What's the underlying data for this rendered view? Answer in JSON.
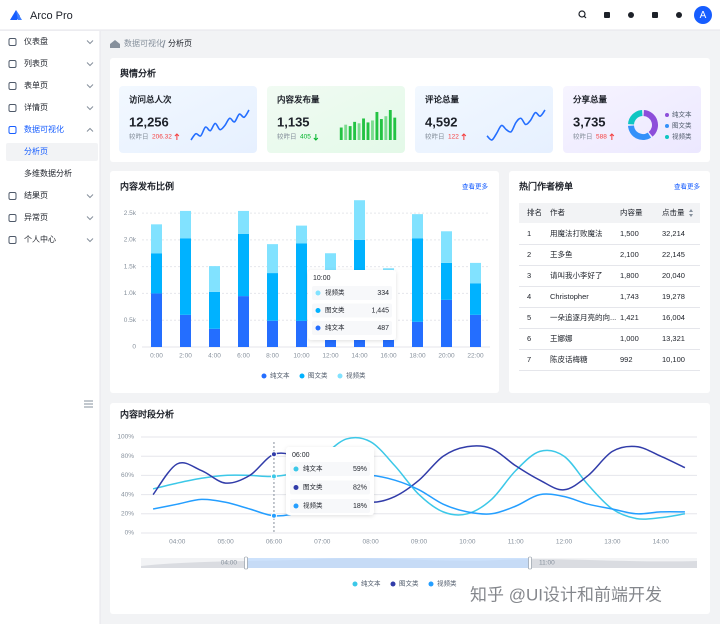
{
  "app": {
    "logo": "Arco Pro",
    "avatar": "A"
  },
  "menu": [
    "仪表盘",
    "列表页",
    "表单页",
    "详情页",
    "数据可视化",
    "结果页",
    "异常页",
    "个人中心"
  ],
  "submenu": [
    "分析页",
    "多维数据分析"
  ],
  "breadcrumb": [
    "数据可视化",
    "分析页"
  ],
  "overview": {
    "title": "舆情分析",
    "cards": [
      {
        "title": "访问总人次",
        "value": "12,256",
        "compare": "较昨日",
        "change": "206.32",
        "direction": "up",
        "chart": "line",
        "color": "#246eff",
        "trend": [
          30,
          42,
          38,
          55,
          48,
          62,
          50,
          58,
          72,
          65,
          80,
          74,
          88
        ]
      },
      {
        "title": "内容发布量",
        "value": "1,135",
        "compare": "较昨日",
        "change": "405",
        "direction": "down",
        "chart": "bar",
        "color": "#23c343",
        "trend": [
          30,
          40,
          35,
          50,
          45,
          62,
          48,
          55,
          85,
          60,
          70,
          92,
          65
        ]
      },
      {
        "title": "评论总量",
        "value": "4,592",
        "compare": "较昨日",
        "change": "122",
        "direction": "up",
        "chart": "line",
        "color": "#246eff",
        "trend": [
          40,
          32,
          45,
          60,
          52,
          48,
          66,
          74,
          62,
          70,
          85,
          78,
          90
        ]
      },
      {
        "title": "分享总量",
        "value": "3,735",
        "compare": "较昨日",
        "change": "588",
        "direction": "up",
        "chart": "pie",
        "slices": [
          {
            "name": "纯文本",
            "color": "#8d4eda",
            "value": 40
          },
          {
            "name": "图文类",
            "color": "#3491fa",
            "value": 35
          },
          {
            "name": "视频类",
            "color": "#0fc6c2",
            "value": 25
          }
        ]
      }
    ]
  },
  "authors": {
    "title": "热门作者榜单",
    "more": "查看更多",
    "columns": [
      "排名",
      "作者",
      "内容量",
      "点击量"
    ],
    "rows": [
      [
        "1",
        "用魔法打败魔法",
        "1,500",
        "32,214"
      ],
      [
        "2",
        "王多鱼",
        "2,100",
        "22,145"
      ],
      [
        "3",
        "请叫我小李好了",
        "1,800",
        "20,040"
      ],
      [
        "4",
        "Christopher",
        "1,743",
        "19,278"
      ],
      [
        "5",
        "一朵追逐月亮的向...",
        "1,421",
        "16,004"
      ],
      [
        "6",
        "王娜娜",
        "1,000",
        "13,321"
      ],
      [
        "7",
        "陈皮话梅糖",
        "992",
        "10,100"
      ]
    ]
  },
  "chart_data": [
    {
      "type": "bar",
      "stacked": true,
      "title": "内容发布比例",
      "more": "查看更多",
      "categories": [
        "0:00",
        "2:00",
        "4:00",
        "6:00",
        "8:00",
        "10:00",
        "12:00",
        "14:00",
        "16:00",
        "18:00",
        "20:00",
        "22:00"
      ],
      "series": [
        {
          "name": "纯文本",
          "color": "#246eff",
          "values": [
            1000,
            600,
            340,
            950,
            490,
            487,
            470,
            900,
            410,
            470,
            880,
            600
          ]
        },
        {
          "name": "图文类",
          "color": "#00b2ff",
          "values": [
            750,
            1430,
            690,
            1160,
            890,
            1445,
            800,
            1100,
            590,
            1560,
            690,
            590
          ]
        },
        {
          "name": "视频类",
          "color": "#81e2ff",
          "values": [
            540,
            510,
            480,
            430,
            540,
            334,
            480,
            740,
            470,
            450,
            590,
            380
          ]
        }
      ],
      "ylim": [
        0,
        2800
      ],
      "yticks": [
        0,
        {
          "value": 500,
          "label": "0.5k"
        },
        {
          "value": 1000,
          "label": "1.0k"
        },
        {
          "value": 1500,
          "label": "1.5k"
        },
        {
          "value": 2000,
          "label": "2.0k"
        },
        {
          "value": 2500,
          "label": "2.5k"
        }
      ],
      "grid": true,
      "legend": "bottom",
      "tooltip": {
        "values": [
          "334",
          "1,445",
          "487"
        ]
      }
    },
    {
      "type": "line",
      "smooth": true,
      "title": "内容时段分析",
      "categories": [
        null,
        "04:00",
        null,
        "05:00",
        null,
        "06:00",
        null,
        "07:00",
        null,
        "08:00",
        null,
        "09:00",
        null,
        "10:00",
        null,
        "11:00",
        null,
        "12:00",
        null,
        "13:00",
        null,
        "14:00",
        null
      ],
      "series": [
        {
          "name": "纯文本",
          "color": "#3cc8e8",
          "values": [
            46,
            52,
            57,
            60,
            60,
            59,
            64,
            80,
            98,
            95,
            70,
            40,
            22,
            20,
            35,
            65,
            85,
            80,
            50,
            25,
            15,
            16,
            20
          ]
        },
        {
          "name": "图文类",
          "color": "#313ca9",
          "values": [
            40,
            72,
            65,
            52,
            60,
            82,
            78,
            55,
            40,
            32,
            38,
            55,
            80,
            90,
            88,
            70,
            55,
            45,
            60,
            85,
            90,
            80,
            68
          ]
        },
        {
          "name": "视频类",
          "color": "#249eff",
          "values": [
            25,
            30,
            35,
            32,
            25,
            18,
            22,
            40,
            58,
            60,
            55,
            45,
            30,
            22,
            20,
            28,
            40,
            38,
            30,
            25,
            20,
            22,
            22
          ]
        }
      ],
      "ylim": [
        0,
        100
      ],
      "yticks": [
        {
          "value": 0,
          "label": "0%"
        },
        {
          "value": 20,
          "label": "20%"
        },
        {
          "value": 40,
          "label": "40%"
        },
        {
          "value": 60,
          "label": "60%"
        },
        {
          "value": 80,
          "label": "80%"
        },
        {
          "value": 100,
          "label": "100%"
        }
      ],
      "grid": true,
      "legend": "bottom",
      "tooltip": {
        "values": [
          "59%",
          "82%",
          "18%"
        ]
      },
      "zoom": [
        "04:00",
        "11:00"
      ]
    }
  ],
  "watermark": "知乎 @UI设计和前端开发"
}
